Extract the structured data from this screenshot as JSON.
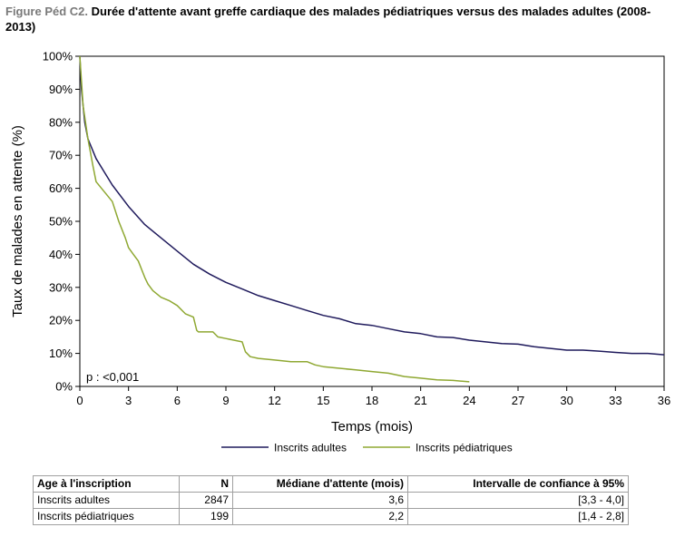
{
  "figure": {
    "prefix": "Figure Péd C2.",
    "title": "Durée d'attente avant greffe cardiaque des malades pédiatriques versus des malades adultes (2008-2013)"
  },
  "chart_data": {
    "type": "line",
    "xlabel": "Temps (mois)",
    "ylabel": "Taux de malades en attente (%)",
    "xlim": [
      0,
      36
    ],
    "ylim": [
      0,
      100
    ],
    "xticks": [
      "0",
      "3",
      "6",
      "9",
      "12",
      "15",
      "18",
      "21",
      "24",
      "27",
      "30",
      "33",
      "36"
    ],
    "yticks": [
      "0%",
      "10%",
      "20%",
      "30%",
      "40%",
      "50%",
      "60%",
      "70%",
      "80%",
      "90%",
      "100%"
    ],
    "grid": false,
    "legend_position": "bottom",
    "annotation": "p : <0,001",
    "series": [
      {
        "name": "Inscrits adultes",
        "color": "#1f1a5c",
        "points": [
          [
            0,
            100
          ],
          [
            0.1,
            90
          ],
          [
            0.3,
            80
          ],
          [
            0.5,
            75
          ],
          [
            1,
            69
          ],
          [
            1.5,
            65
          ],
          [
            2,
            61
          ],
          [
            3,
            54.5
          ],
          [
            4,
            49
          ],
          [
            5,
            45
          ],
          [
            6,
            41
          ],
          [
            7,
            37
          ],
          [
            8,
            34
          ],
          [
            9,
            31.5
          ],
          [
            10,
            29.5
          ],
          [
            11,
            27.5
          ],
          [
            12,
            26
          ],
          [
            13,
            24.5
          ],
          [
            14,
            23
          ],
          [
            15,
            21.5
          ],
          [
            16,
            20.5
          ],
          [
            17,
            19
          ],
          [
            18,
            18.5
          ],
          [
            19,
            17.5
          ],
          [
            20,
            16.5
          ],
          [
            21,
            16
          ],
          [
            22,
            15
          ],
          [
            23,
            14.8
          ],
          [
            24,
            14
          ],
          [
            25,
            13.5
          ],
          [
            26,
            13
          ],
          [
            27,
            12.8
          ],
          [
            28,
            12
          ],
          [
            29,
            11.5
          ],
          [
            30,
            11
          ],
          [
            31,
            11
          ],
          [
            32,
            10.7
          ],
          [
            33,
            10.3
          ],
          [
            34,
            10
          ],
          [
            35,
            10
          ],
          [
            36,
            9.6
          ]
        ]
      },
      {
        "name": "Inscrits pédiatriques",
        "color": "#8fa832",
        "points": [
          [
            0,
            100
          ],
          [
            0.2,
            85
          ],
          [
            0.5,
            75
          ],
          [
            0.8,
            67
          ],
          [
            1,
            62
          ],
          [
            1.5,
            59
          ],
          [
            2,
            56
          ],
          [
            2.4,
            50
          ],
          [
            2.8,
            45
          ],
          [
            3,
            42
          ],
          [
            3.3,
            40
          ],
          [
            3.6,
            38
          ],
          [
            4,
            33
          ],
          [
            4.2,
            31
          ],
          [
            4.5,
            29
          ],
          [
            5,
            27
          ],
          [
            5.5,
            26
          ],
          [
            6,
            24.5
          ],
          [
            6.5,
            22
          ],
          [
            7,
            21
          ],
          [
            7.2,
            17
          ],
          [
            7.3,
            16.5
          ],
          [
            8.2,
            16.5
          ],
          [
            8.5,
            15
          ],
          [
            9,
            14.5
          ],
          [
            10,
            13.5
          ],
          [
            10.2,
            10.5
          ],
          [
            10.5,
            9
          ],
          [
            11,
            8.5
          ],
          [
            12,
            8
          ],
          [
            13,
            7.5
          ],
          [
            14,
            7.5
          ],
          [
            14.5,
            6.5
          ],
          [
            15,
            6
          ],
          [
            16,
            5.5
          ],
          [
            17,
            5
          ],
          [
            18,
            4.5
          ],
          [
            19,
            4
          ],
          [
            20,
            3
          ],
          [
            21,
            2.5
          ],
          [
            22,
            2
          ],
          [
            23,
            1.8
          ],
          [
            24,
            1.4
          ]
        ]
      }
    ]
  },
  "table": {
    "headers": [
      "Age à l'inscription",
      "N",
      "Médiane d'attente (mois)",
      "Intervalle de confiance à 95%"
    ],
    "rows": [
      [
        "Inscrits adultes",
        "2847",
        "3,6",
        "[3,3 - 4,0]"
      ],
      [
        "Inscrits pédiatriques",
        "199",
        "2,2",
        "[1,4 - 2,8]"
      ]
    ]
  }
}
